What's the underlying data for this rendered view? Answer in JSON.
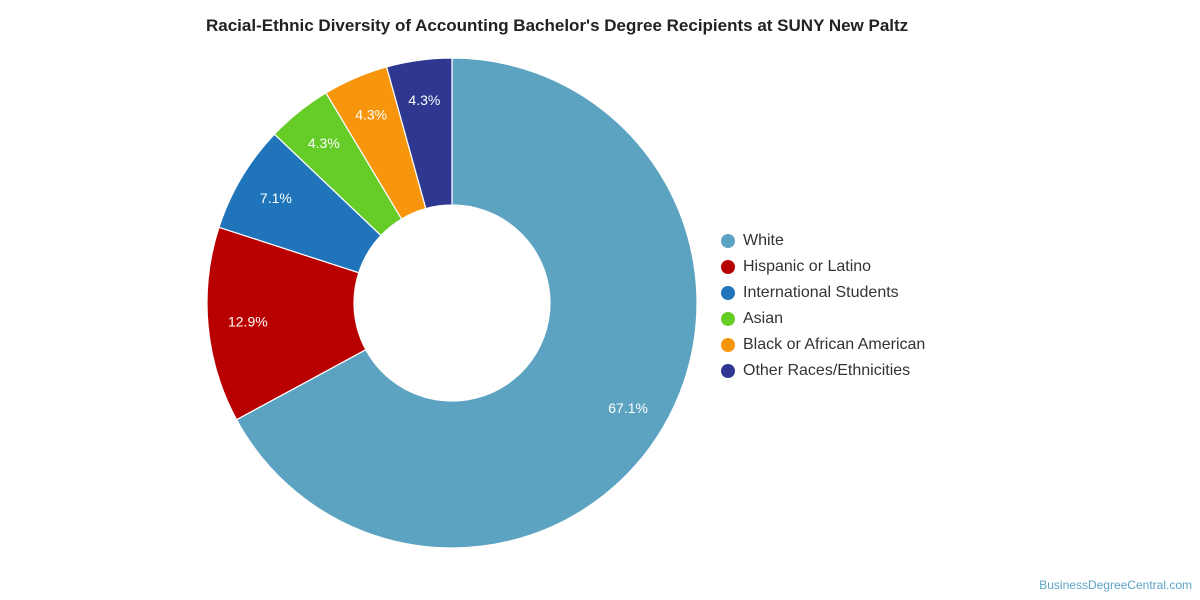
{
  "chart_data": {
    "type": "pie",
    "title": "Racial-Ethnic Diversity of Accounting Bachelor's Degree Recipients at SUNY New Paltz",
    "donut": true,
    "legend_position": "right",
    "categories": [
      "White",
      "Hispanic or Latino",
      "International Students",
      "Asian",
      "Black or African American",
      "Other Races/Ethnicities"
    ],
    "values": [
      67.1,
      12.9,
      7.1,
      4.3,
      4.3,
      4.3
    ],
    "data_labels": [
      "67.1%",
      "12.9%",
      "7.1%",
      "4.3%",
      "4.3%",
      "4.3%"
    ],
    "colors": [
      "#5ba3c0",
      "#b90000",
      "#1f74ba",
      "#66cc28",
      "#f7960c",
      "#2e3891"
    ]
  },
  "watermark": "BusinessDegreeCentral.com"
}
